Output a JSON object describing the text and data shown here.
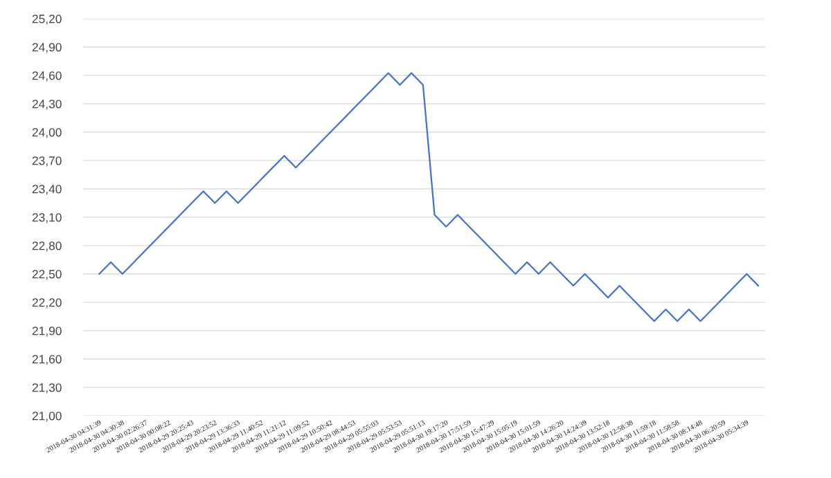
{
  "chart_data": {
    "type": "line",
    "categories": [
      "2018-04-30 04:31:39",
      null,
      "2018-04-30 04:30:38",
      null,
      "2018-04-30 02:26:37",
      null,
      "2018-04-30 00:08:22",
      null,
      "2018-04-29 20:25:43",
      null,
      "2018-04-29 20:23:52",
      null,
      "2018-04-29 13:36:33",
      null,
      "2018-04-29 11:40:52",
      null,
      "2018-04-29 11:21:12",
      null,
      "2018-04-29 11:09:52",
      null,
      "2018-04-29 10:50:42",
      null,
      "2018-04-29 08:44:53",
      null,
      "2018-04-29 05:55:03",
      null,
      "2018-04-29 05:53:53",
      null,
      "2018-04-29 05:51:13",
      null,
      "2018-04-30 19:17:20",
      null,
      "2018-04-30 17:51:59",
      null,
      "2018-04-30 15:47:29",
      null,
      "2018-04-30 15:05:19",
      null,
      "2018-04-30 15:01:59",
      null,
      "2018-04-30 14:26:20",
      null,
      "2018-04-30 14:24:39",
      null,
      "2018-04-30 13:52:18",
      null,
      "2018-04-30 12:58:38",
      null,
      "2018-04-30 11:59:18",
      null,
      "2018-04-30 11:58:58",
      null,
      "2018-04-30 08:14:48",
      null,
      "2018-04-30 06:20:59",
      null,
      "2018-04-30 05:34:39",
      null
    ],
    "series": [
      {
        "color": "#3f6fd8",
        "values": [
          22.5,
          22.625,
          22.5,
          22.625,
          22.75,
          22.875,
          23.0,
          23.125,
          23.25,
          23.375,
          23.25,
          23.375,
          23.25,
          23.375,
          23.5,
          23.625,
          23.75,
          23.625,
          23.75,
          23.875,
          24.0,
          24.125,
          24.25,
          24.375,
          24.5,
          24.625,
          24.5,
          24.625,
          24.5,
          23.125,
          23.0,
          23.125,
          23.0,
          22.875,
          22.75,
          22.625,
          22.5,
          22.625,
          22.5,
          22.625,
          22.5,
          22.375,
          22.5,
          22.375,
          22.25,
          22.375,
          22.25,
          22.125,
          22.0,
          22.125,
          22.0,
          22.125,
          22.0,
          22.125,
          22.25,
          22.375,
          22.5,
          22.375
        ]
      }
    ],
    "ylim": [
      21,
      25.2
    ],
    "yticks": [
      {
        "value": 21,
        "label": "21,00"
      },
      {
        "value": 21.3,
        "label": "21,30"
      },
      {
        "value": 21.6,
        "label": "21,60"
      },
      {
        "value": 21.9,
        "label": "21,90"
      },
      {
        "value": 22.2,
        "label": "22,20"
      },
      {
        "value": 22.5,
        "label": "22,50"
      },
      {
        "value": 22.8,
        "label": "22,80"
      },
      {
        "value": 23.1,
        "label": "23,10"
      },
      {
        "value": 23.4,
        "label": "23,40"
      },
      {
        "value": 23.7,
        "label": "23,70"
      },
      {
        "value": 24.0,
        "label": "24,00"
      },
      {
        "value": 24.3,
        "label": "24,30"
      },
      {
        "value": 24.6,
        "label": "24,60"
      },
      {
        "value": 24.9,
        "label": "24,90"
      },
      {
        "value": 25.2,
        "label": "25,20"
      }
    ],
    "grid": "y",
    "marker": "none",
    "line_style": "solid"
  }
}
